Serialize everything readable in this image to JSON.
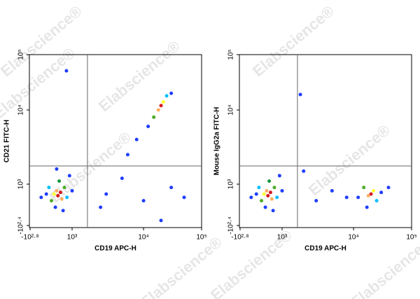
{
  "watermark": "Elabscience®",
  "chart_data": [
    {
      "type": "scatter",
      "xlabel": "CD19 APC-H",
      "ylabel": "CD21 FITC-H",
      "xlim": [
        -631,
        100000
      ],
      "ylim": [
        -251,
        100000
      ],
      "xticks": [
        {
          "value": -631,
          "label": "-10²·⁸"
        },
        {
          "value": 1000,
          "label": "10³"
        },
        {
          "value": 10000,
          "label": "10⁴"
        },
        {
          "value": 100000,
          "label": "10⁵"
        }
      ],
      "yticks": [
        {
          "value": -251,
          "label": "-10²·⁴"
        },
        {
          "value": 1000,
          "label": "10³"
        },
        {
          "value": 10000,
          "label": "10⁴"
        },
        {
          "value": 100000,
          "label": "10⁵"
        }
      ],
      "gate_x": 1640,
      "gate_y": 1760,
      "x": [
        450,
        550,
        400,
        600,
        300,
        700,
        200,
        500,
        800,
        100,
        350,
        900,
        0,
        650,
        -200,
        1000,
        400,
        20000,
        18000,
        22000,
        15000,
        25000,
        12000,
        30000,
        8000,
        6000,
        3000,
        10000,
        30000,
        5000,
        50000,
        2500,
        20000,
        780
      ],
      "values": [
        650,
        750,
        800,
        550,
        700,
        900,
        500,
        1100,
        600,
        900,
        300,
        1300,
        700,
        200,
        600,
        800,
        1600,
        12000,
        10000,
        14000,
        8000,
        18000,
        6000,
        20000,
        4000,
        2500,
        700,
        500,
        900,
        1200,
        600,
        300,
        -100,
        51000
      ],
      "colors": [
        "#d7191c",
        "#d7191c",
        "#fdae61",
        "#fdae61",
        "#ffff33",
        "#4dac26",
        "#4dac26",
        "#1a9641",
        "#00bfff",
        "#00bfff",
        "#1f3dff",
        "#1f3dff",
        "#1f3dff",
        "#1f3dff",
        "#1f3dff",
        "#1f3dff",
        "#1f3dff",
        "#d7191c",
        "#fdae61",
        "#ffff33",
        "#4dac26",
        "#00bfff",
        "#1f3dff",
        "#1f3dff",
        "#1f3dff",
        "#1f3dff",
        "#1f3dff",
        "#1f3dff",
        "#1f3dff",
        "#1f3dff",
        "#1f3dff",
        "#1f3dff",
        "#1f3dff",
        "#1f3dff"
      ]
    },
    {
      "type": "scatter",
      "xlabel": "CD19 APC-H",
      "ylabel": "Mouse IgG2a FITC-H",
      "xlim": [
        -631,
        100000
      ],
      "ylim": [
        -251,
        100000
      ],
      "xticks": [
        {
          "value": -631,
          "label": "-10²·⁸"
        },
        {
          "value": 1000,
          "label": "10³"
        },
        {
          "value": 10000,
          "label": "10⁴"
        },
        {
          "value": 100000,
          "label": "10⁵"
        }
      ],
      "yticks": [
        {
          "value": -251,
          "label": "-10²·⁴"
        },
        {
          "value": 1000,
          "label": "10³"
        },
        {
          "value": 10000,
          "label": "10⁴"
        },
        {
          "value": 100000,
          "label": "10⁵"
        }
      ],
      "gate_x": 1640,
      "gate_y": 1760,
      "x": [
        450,
        550,
        400,
        600,
        300,
        700,
        200,
        500,
        800,
        100,
        350,
        900,
        0,
        650,
        -200,
        1000,
        20000,
        18000,
        22000,
        15000,
        25000,
        30000,
        12000,
        40000,
        17000,
        3000,
        5000,
        2000,
        8000,
        1800
      ],
      "values": [
        650,
        750,
        800,
        550,
        700,
        900,
        500,
        1100,
        600,
        900,
        300,
        1300,
        700,
        200,
        600,
        800,
        700,
        650,
        800,
        900,
        500,
        750,
        600,
        900,
        300,
        500,
        800,
        1500,
        600,
        19000
      ],
      "colors": [
        "#d7191c",
        "#d7191c",
        "#fdae61",
        "#fdae61",
        "#ffff33",
        "#4dac26",
        "#4dac26",
        "#1a9641",
        "#00bfff",
        "#00bfff",
        "#1f3dff",
        "#1f3dff",
        "#1f3dff",
        "#1f3dff",
        "#1f3dff",
        "#1f3dff",
        "#d7191c",
        "#fdae61",
        "#ffff33",
        "#4dac26",
        "#00bfff",
        "#1f3dff",
        "#1f3dff",
        "#1f3dff",
        "#1f3dff",
        "#1f3dff",
        "#1f3dff",
        "#1f3dff",
        "#1f3dff",
        "#1f3dff"
      ]
    }
  ]
}
